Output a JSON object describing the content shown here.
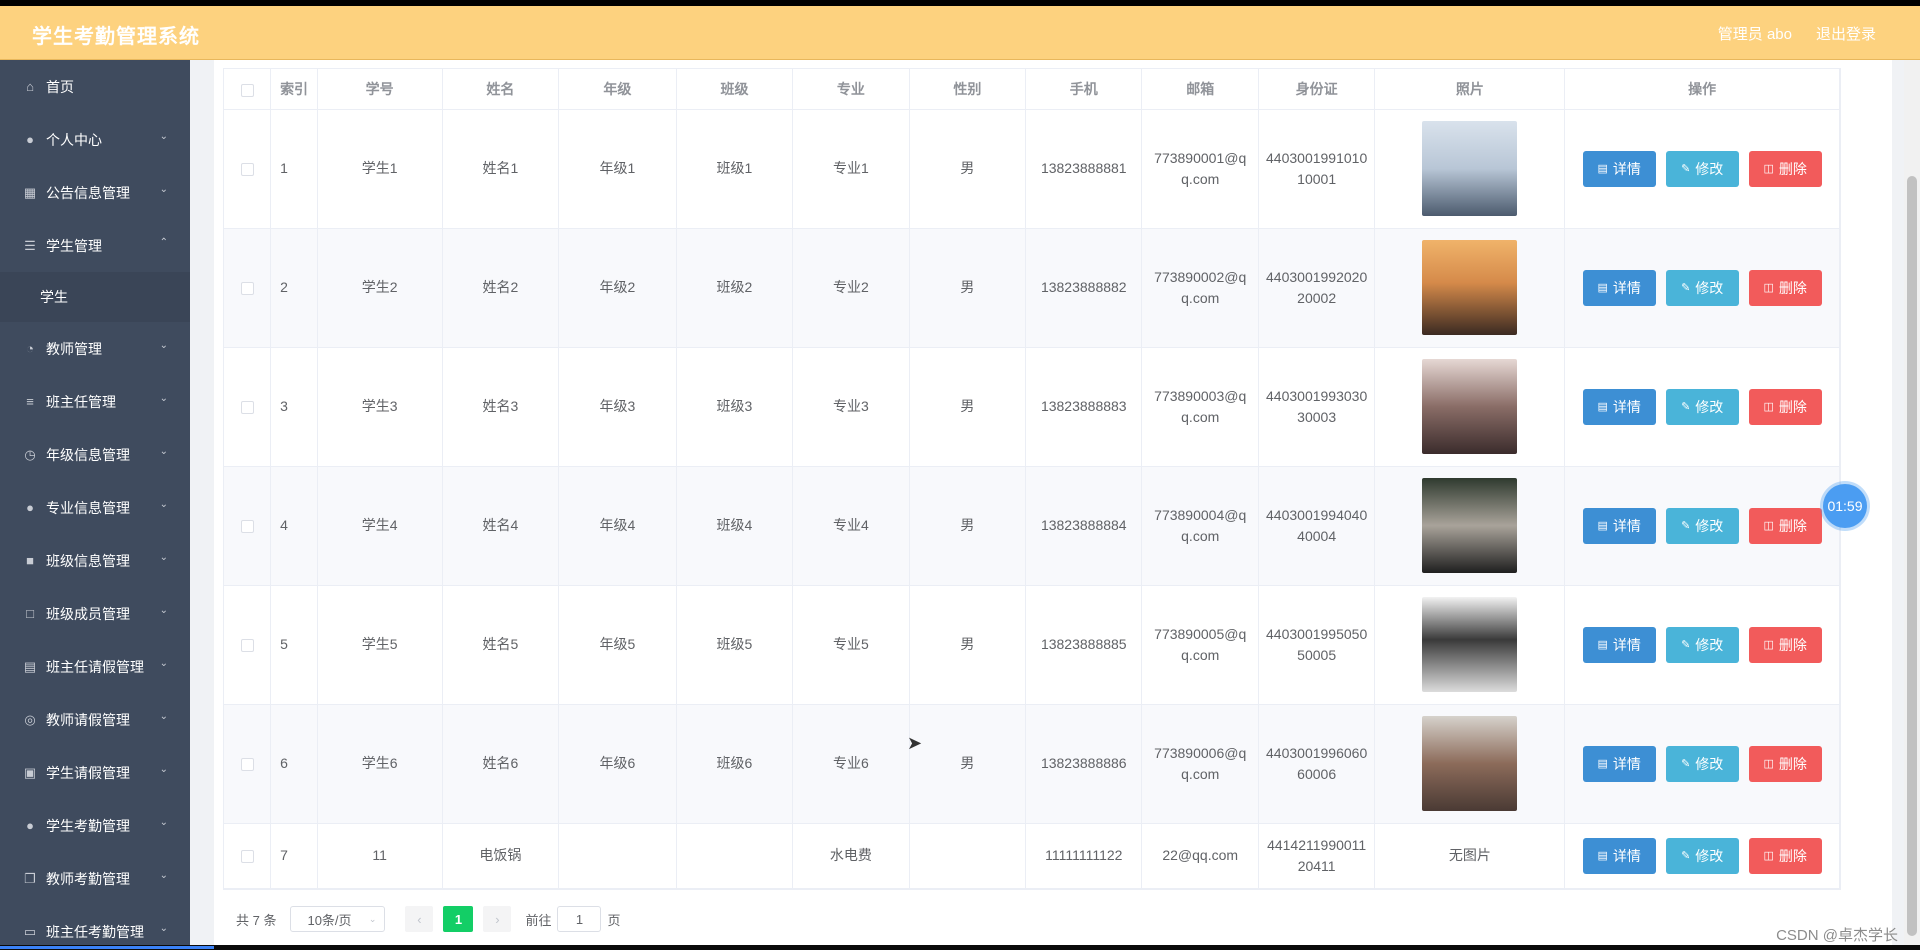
{
  "header": {
    "title": "学生考勤管理系统",
    "user": "管理员 abo",
    "logout": "退出登录"
  },
  "sidebar": {
    "items": [
      {
        "label": "首页",
        "icon": "home-icon"
      },
      {
        "label": "个人中心",
        "icon": "user-icon"
      },
      {
        "label": "公告信息管理",
        "icon": "grid-icon"
      },
      {
        "label": "学生管理",
        "icon": "list-icon"
      },
      {
        "label": "教师管理",
        "icon": "compass-icon"
      },
      {
        "label": "班主任管理",
        "icon": "sliders-icon"
      },
      {
        "label": "年级信息管理",
        "icon": "clock-icon"
      },
      {
        "label": "专业信息管理",
        "icon": "person-icon"
      },
      {
        "label": "班级信息管理",
        "icon": "book-icon"
      },
      {
        "label": "班级成员管理",
        "icon": "fullscreen-icon"
      },
      {
        "label": "班主任请假管理",
        "icon": "chart-icon"
      },
      {
        "label": "教师请假管理",
        "icon": "settings-icon"
      },
      {
        "label": "学生请假管理",
        "icon": "message-icon"
      },
      {
        "label": "学生考勤管理",
        "icon": "user-icon"
      },
      {
        "label": "教师考勤管理",
        "icon": "copy-icon"
      },
      {
        "label": "班主任考勤管理",
        "icon": "monitor-icon"
      }
    ],
    "submenu": "学生"
  },
  "table": {
    "headers": [
      "索引",
      "学号",
      "姓名",
      "年级",
      "班级",
      "专业",
      "性别",
      "手机",
      "邮箱",
      "身份证",
      "照片",
      "操作"
    ],
    "rows": [
      {
        "index": "1",
        "sid": "学生1",
        "name": "姓名1",
        "grade": "年级1",
        "cls": "班级1",
        "major": "专业1",
        "gender": "男",
        "phone": "13823888881",
        "email": "773890001@qq.com",
        "idcard": "440300199101010001",
        "photo": "photo"
      },
      {
        "index": "2",
        "sid": "学生2",
        "name": "姓名2",
        "grade": "年级2",
        "cls": "班级2",
        "major": "专业2",
        "gender": "男",
        "phone": "13823888882",
        "email": "773890002@qq.com",
        "idcard": "440300199202020002",
        "photo": "photo"
      },
      {
        "index": "3",
        "sid": "学生3",
        "name": "姓名3",
        "grade": "年级3",
        "cls": "班级3",
        "major": "专业3",
        "gender": "男",
        "phone": "13823888883",
        "email": "773890003@qq.com",
        "idcard": "440300199303030003",
        "photo": "photo"
      },
      {
        "index": "4",
        "sid": "学生4",
        "name": "姓名4",
        "grade": "年级4",
        "cls": "班级4",
        "major": "专业4",
        "gender": "男",
        "phone": "13823888884",
        "email": "773890004@qq.com",
        "idcard": "440300199404040004",
        "photo": "photo"
      },
      {
        "index": "5",
        "sid": "学生5",
        "name": "姓名5",
        "grade": "年级5",
        "cls": "班级5",
        "major": "专业5",
        "gender": "男",
        "phone": "13823888885",
        "email": "773890005@qq.com",
        "idcard": "440300199505050005",
        "photo": "photo"
      },
      {
        "index": "6",
        "sid": "学生6",
        "name": "姓名6",
        "grade": "年级6",
        "cls": "班级6",
        "major": "专业6",
        "gender": "男",
        "phone": "13823888886",
        "email": "773890006@qq.com",
        "idcard": "440300199606060006",
        "photo": "photo"
      },
      {
        "index": "7",
        "sid": "11",
        "name": "电饭锅",
        "grade": "",
        "cls": "",
        "major": "水电费",
        "gender": "",
        "phone": "11111111122",
        "email": "22@qq.com",
        "idcard": "441421199001120411",
        "photo": "无图片"
      }
    ],
    "actions": {
      "detail": "详情",
      "edit": "修改",
      "delete": "删除"
    }
  },
  "pagination": {
    "total": "共 7 条",
    "page_size": "10条/页",
    "current_page": "1",
    "goto_prefix": "前往",
    "goto_value": "1",
    "goto_suffix": "页"
  },
  "overlay": {
    "timer": "01:59",
    "watermark": "CSDN @卓杰学长"
  },
  "colors": {
    "header_bg": "#fdd27f",
    "sidebar_bg": "#3f4b5e",
    "detail_btn": "#3d8fd4",
    "edit_btn": "#4ab4d9",
    "delete_btn": "#f25b5b",
    "page_active": "#13ce66"
  }
}
